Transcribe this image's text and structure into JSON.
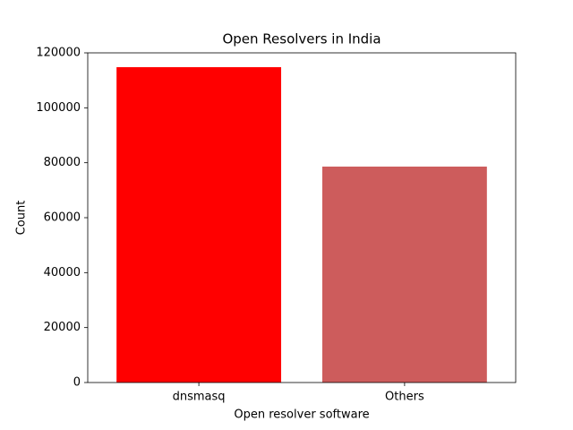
{
  "chart_data": {
    "type": "bar",
    "title": "Open Resolvers in India",
    "x_label": "Open resolver software",
    "y_label": "Count",
    "categories": [
      "dnsmasq",
      "Others"
    ],
    "values": [
      114800,
      78600
    ],
    "colors": [
      "#ff0000",
      "#cd5c5c"
    ],
    "ylim": [
      0,
      120000
    ],
    "yticks": [
      0,
      20000,
      40000,
      60000,
      80000,
      100000,
      120000
    ],
    "grid": false
  }
}
